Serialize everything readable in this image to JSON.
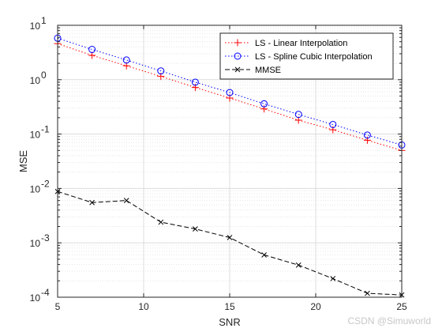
{
  "chart_data": {
    "type": "line",
    "x_scale": "linear",
    "y_scale": "log",
    "xlabel": "SNR",
    "ylabel": "MSE",
    "xlim": [
      5,
      25
    ],
    "ylim": [
      0.0001,
      10
    ],
    "x_ticks": [
      5,
      10,
      15,
      20,
      25
    ],
    "x_tick_labels": [
      "5",
      "10",
      "15",
      "20",
      "25"
    ],
    "y_ticks": [
      0.0001,
      0.001,
      0.01,
      0.1,
      1,
      10
    ],
    "y_tick_labels": [
      {
        "base": "10",
        "exp": "-4"
      },
      {
        "base": "10",
        "exp": "-3"
      },
      {
        "base": "10",
        "exp": "-2"
      },
      {
        "base": "10",
        "exp": "-1"
      },
      {
        "base": "10",
        "exp": "0"
      },
      {
        "base": "10",
        "exp": "1"
      }
    ],
    "grid": true,
    "minor_grid": true,
    "legend_position": "top-right",
    "x": [
      5,
      7,
      9,
      11,
      13,
      15,
      17,
      19,
      21,
      23,
      25
    ],
    "series": [
      {
        "name": "LS - Linear Interpolation",
        "color": "#ff0000",
        "line_style": "dotted",
        "marker": "plus",
        "values": [
          4.6,
          2.8,
          1.8,
          1.15,
          0.72,
          0.46,
          0.29,
          0.18,
          0.12,
          0.077,
          0.05
        ]
      },
      {
        "name": "LS - Spline Cubic Interpolation",
        "color": "#0000ff",
        "line_style": "dotted",
        "marker": "circle",
        "values": [
          5.8,
          3.6,
          2.3,
          1.45,
          0.9,
          0.58,
          0.36,
          0.23,
          0.15,
          0.096,
          0.063
        ]
      },
      {
        "name": "MMSE",
        "color": "#000000",
        "line_style": "dashed",
        "marker": "x",
        "values": [
          0.0088,
          0.0055,
          0.006,
          0.0024,
          0.0018,
          0.00125,
          0.0006,
          0.00039,
          0.00022,
          0.000118,
          0.00011
        ]
      }
    ]
  },
  "watermark": "CSDN @Simuworld"
}
